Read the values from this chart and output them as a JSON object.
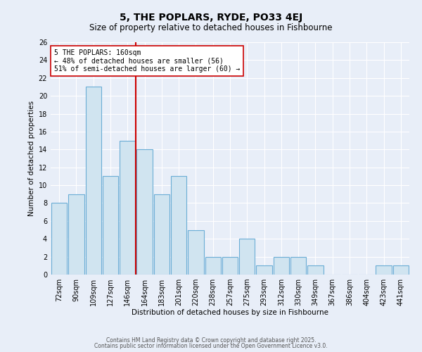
{
  "title": "5, THE POPLARS, RYDE, PO33 4EJ",
  "subtitle": "Size of property relative to detached houses in Fishbourne",
  "xlabel": "Distribution of detached houses by size in Fishbourne",
  "ylabel": "Number of detached properties",
  "categories": [
    "72sqm",
    "90sqm",
    "109sqm",
    "127sqm",
    "146sqm",
    "164sqm",
    "183sqm",
    "201sqm",
    "220sqm",
    "238sqm",
    "257sqm",
    "275sqm",
    "293sqm",
    "312sqm",
    "330sqm",
    "349sqm",
    "367sqm",
    "386sqm",
    "404sqm",
    "423sqm",
    "441sqm"
  ],
  "values": [
    8,
    9,
    21,
    11,
    15,
    14,
    9,
    11,
    5,
    2,
    2,
    4,
    1,
    2,
    2,
    1,
    0,
    0,
    0,
    1,
    1
  ],
  "bar_color": "#d0e4f0",
  "bar_edge_color": "#6aadd5",
  "vline_x": 4.5,
  "vline_color": "#cc0000",
  "annotation_title": "5 THE POPLARS: 160sqm",
  "annotation_line1": "← 48% of detached houses are smaller (56)",
  "annotation_line2": "51% of semi-detached houses are larger (60) →",
  "annotation_box_color": "#ffffff",
  "annotation_box_edge": "#cc0000",
  "ylim": [
    0,
    26
  ],
  "yticks": [
    0,
    2,
    4,
    6,
    8,
    10,
    12,
    14,
    16,
    18,
    20,
    22,
    24,
    26
  ],
  "background_color": "#e8eef8",
  "plot_bg_color": "#e8eef8",
  "grid_color": "#ffffff",
  "footer1": "Contains HM Land Registry data © Crown copyright and database right 2025.",
  "footer2": "Contains public sector information licensed under the Open Government Licence v3.0.",
  "title_fontsize": 10,
  "subtitle_fontsize": 8.5,
  "xlabel_fontsize": 7.5,
  "ylabel_fontsize": 7.5,
  "tick_fontsize": 7,
  "annotation_fontsize": 7,
  "footer_fontsize": 5.5
}
